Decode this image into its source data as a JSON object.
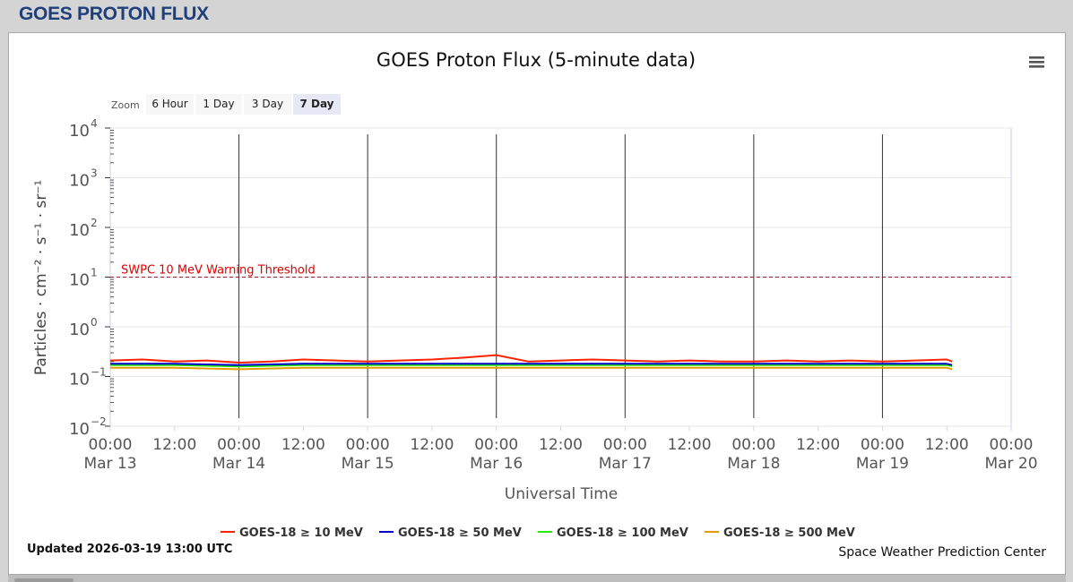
{
  "page": {
    "title": "GOES PROTON FLUX"
  },
  "footer": {
    "updated": "Updated 2026-03-19 13:00 UTC",
    "credit": "Space Weather Prediction Center"
  },
  "zoom": {
    "label": "Zoom",
    "options": [
      "6 Hour",
      "1 Day",
      "3 Day",
      "7 Day"
    ],
    "selected": "7 Day"
  },
  "chart_data": {
    "type": "line",
    "title": "GOES Proton Flux (5-minute data)",
    "xlabel": "Universal Time",
    "ylabel": "Particles · cm⁻² · s⁻¹ · sr⁻¹",
    "y_scale": "log",
    "ylim": [
      0.01,
      10000
    ],
    "y_ticks": [
      {
        "value": 0.01,
        "base": "10",
        "exp": "−2"
      },
      {
        "value": 0.1,
        "base": "10",
        "exp": "−1"
      },
      {
        "value": 1,
        "base": "10",
        "exp": "0"
      },
      {
        "value": 10,
        "base": "10",
        "exp": "1"
      },
      {
        "value": 100,
        "base": "10",
        "exp": "2"
      },
      {
        "value": 1000,
        "base": "10",
        "exp": "3"
      },
      {
        "value": 10000,
        "base": "10",
        "exp": "4"
      }
    ],
    "xlim": [
      "2026-03-13 00:00",
      "2026-03-20 00:00"
    ],
    "x_ticks": [
      {
        "time": "2026-03-13 00:00",
        "label": "00:00",
        "date": "Mar 13"
      },
      {
        "time": "2026-03-13 12:00",
        "label": "12:00",
        "date": ""
      },
      {
        "time": "2026-03-14 00:00",
        "label": "00:00",
        "date": "Mar 14"
      },
      {
        "time": "2026-03-14 12:00",
        "label": "12:00",
        "date": ""
      },
      {
        "time": "2026-03-15 00:00",
        "label": "00:00",
        "date": "Mar 15"
      },
      {
        "time": "2026-03-15 12:00",
        "label": "12:00",
        "date": ""
      },
      {
        "time": "2026-03-16 00:00",
        "label": "00:00",
        "date": "Mar 16"
      },
      {
        "time": "2026-03-16 12:00",
        "label": "12:00",
        "date": ""
      },
      {
        "time": "2026-03-17 00:00",
        "label": "00:00",
        "date": "Mar 17"
      },
      {
        "time": "2026-03-17 12:00",
        "label": "12:00",
        "date": ""
      },
      {
        "time": "2026-03-18 00:00",
        "label": "00:00",
        "date": "Mar 18"
      },
      {
        "time": "2026-03-18 12:00",
        "label": "12:00",
        "date": ""
      },
      {
        "time": "2026-03-19 00:00",
        "label": "00:00",
        "date": "Mar 19"
      },
      {
        "time": "2026-03-19 12:00",
        "label": "12:00",
        "date": ""
      },
      {
        "time": "2026-03-20 00:00",
        "label": "00:00",
        "date": "Mar 20"
      }
    ],
    "day_lines": [
      "2026-03-14 00:00",
      "2026-03-15 00:00",
      "2026-03-16 00:00",
      "2026-03-17 00:00",
      "2026-03-18 00:00",
      "2026-03-19 00:00"
    ],
    "threshold": {
      "value": 10,
      "label": "SWPC 10 MeV Warning Threshold",
      "color": "#a01830"
    },
    "series": [
      {
        "name": "GOES-18 ≥ 10 MeV",
        "color": "#ff2200",
        "x": [
          "2026-03-13 00:00",
          "2026-03-13 06:00",
          "2026-03-13 12:00",
          "2026-03-13 18:00",
          "2026-03-14 00:00",
          "2026-03-14 06:00",
          "2026-03-14 12:00",
          "2026-03-14 18:00",
          "2026-03-15 00:00",
          "2026-03-15 06:00",
          "2026-03-15 12:00",
          "2026-03-15 18:00",
          "2026-03-16 00:00",
          "2026-03-16 06:00",
          "2026-03-16 12:00",
          "2026-03-16 18:00",
          "2026-03-17 00:00",
          "2026-03-17 06:00",
          "2026-03-17 12:00",
          "2026-03-17 18:00",
          "2026-03-18 00:00",
          "2026-03-18 06:00",
          "2026-03-18 12:00",
          "2026-03-18 18:00",
          "2026-03-19 00:00",
          "2026-03-19 06:00",
          "2026-03-19 12:00",
          "2026-03-19 13:00"
        ],
        "values": [
          0.21,
          0.22,
          0.2,
          0.21,
          0.19,
          0.2,
          0.22,
          0.21,
          0.2,
          0.21,
          0.22,
          0.24,
          0.27,
          0.2,
          0.21,
          0.22,
          0.21,
          0.2,
          0.21,
          0.2,
          0.2,
          0.21,
          0.2,
          0.21,
          0.2,
          0.21,
          0.22,
          0.2
        ]
      },
      {
        "name": "GOES-18 ≥ 50 MeV",
        "color": "#0000cc",
        "x": [
          "2026-03-13 00:00",
          "2026-03-13 12:00",
          "2026-03-14 00:00",
          "2026-03-14 12:00",
          "2026-03-15 00:00",
          "2026-03-15 12:00",
          "2026-03-16 00:00",
          "2026-03-16 12:00",
          "2026-03-17 00:00",
          "2026-03-17 12:00",
          "2026-03-18 00:00",
          "2026-03-18 12:00",
          "2026-03-19 00:00",
          "2026-03-19 12:00",
          "2026-03-19 13:00"
        ],
        "values": [
          0.18,
          0.18,
          0.17,
          0.18,
          0.18,
          0.18,
          0.18,
          0.18,
          0.18,
          0.18,
          0.18,
          0.18,
          0.18,
          0.18,
          0.17
        ]
      },
      {
        "name": "GOES-18 ≥ 100 MeV",
        "color": "#22ee00",
        "x": [
          "2026-03-13 00:00",
          "2026-03-13 12:00",
          "2026-03-14 00:00",
          "2026-03-14 12:00",
          "2026-03-15 00:00",
          "2026-03-15 12:00",
          "2026-03-16 00:00",
          "2026-03-16 12:00",
          "2026-03-17 00:00",
          "2026-03-17 12:00",
          "2026-03-18 00:00",
          "2026-03-18 12:00",
          "2026-03-19 00:00",
          "2026-03-19 12:00",
          "2026-03-19 13:00"
        ],
        "values": [
          0.17,
          0.17,
          0.16,
          0.17,
          0.17,
          0.17,
          0.17,
          0.17,
          0.17,
          0.17,
          0.17,
          0.17,
          0.17,
          0.17,
          0.16
        ]
      },
      {
        "name": "GOES-18 ≥ 500 MeV",
        "color": "#e69a00",
        "x": [
          "2026-03-13 00:00",
          "2026-03-13 12:00",
          "2026-03-14 00:00",
          "2026-03-14 12:00",
          "2026-03-15 00:00",
          "2026-03-15 12:00",
          "2026-03-16 00:00",
          "2026-03-16 12:00",
          "2026-03-17 00:00",
          "2026-03-17 12:00",
          "2026-03-18 00:00",
          "2026-03-18 12:00",
          "2026-03-19 00:00",
          "2026-03-19 12:00",
          "2026-03-19 13:00"
        ],
        "values": [
          0.15,
          0.15,
          0.14,
          0.15,
          0.15,
          0.15,
          0.15,
          0.15,
          0.15,
          0.15,
          0.15,
          0.15,
          0.15,
          0.15,
          0.14
        ]
      }
    ]
  }
}
